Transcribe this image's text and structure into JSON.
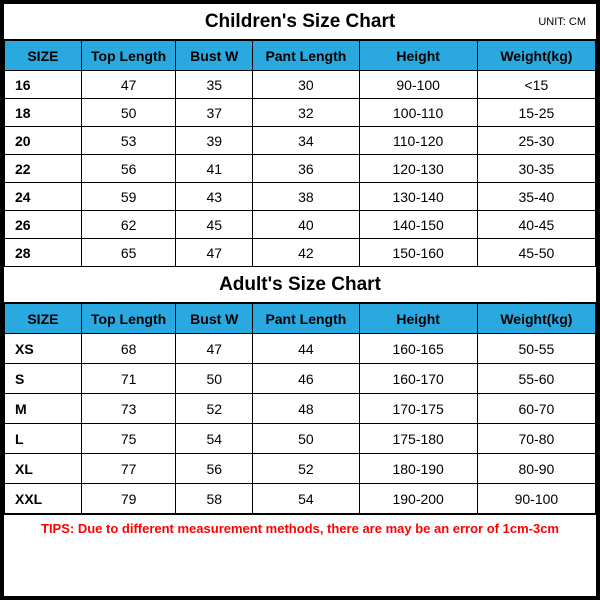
{
  "colors": {
    "header_bg": "#2aa9e0",
    "border": "#000000",
    "tips_color": "#ff0000",
    "body_bg": "#ffffff"
  },
  "layout": {
    "title_row_height": 36,
    "header_row_height": 30,
    "children_row_height": 28,
    "adult_row_height": 30
  },
  "unit_label": "UNIT: CM",
  "children": {
    "title": "Children's Size Chart",
    "columns": [
      "SIZE",
      "Top Length",
      "Bust W",
      "Pant Length",
      "Height",
      "Weight(kg)"
    ],
    "rows": [
      [
        "16",
        "47",
        "35",
        "30",
        "90-100",
        "<15"
      ],
      [
        "18",
        "50",
        "37",
        "32",
        "100-110",
        "15-25"
      ],
      [
        "20",
        "53",
        "39",
        "34",
        "110-120",
        "25-30"
      ],
      [
        "22",
        "56",
        "41",
        "36",
        "120-130",
        "30-35"
      ],
      [
        "24",
        "59",
        "43",
        "38",
        "130-140",
        "35-40"
      ],
      [
        "26",
        "62",
        "45",
        "40",
        "140-150",
        "40-45"
      ],
      [
        "28",
        "65",
        "47",
        "42",
        "150-160",
        "45-50"
      ]
    ]
  },
  "adult": {
    "title": "Adult's Size Chart",
    "columns": [
      "SIZE",
      "Top Length",
      "Bust W",
      "Pant Length",
      "Height",
      "Weight(kg)"
    ],
    "rows": [
      [
        "XS",
        "68",
        "47",
        "44",
        "160-165",
        "50-55"
      ],
      [
        "S",
        "71",
        "50",
        "46",
        "160-170",
        "55-60"
      ],
      [
        "M",
        "73",
        "52",
        "48",
        "170-175",
        "60-70"
      ],
      [
        "L",
        "75",
        "54",
        "50",
        "175-180",
        "70-80"
      ],
      [
        "XL",
        "77",
        "56",
        "52",
        "180-190",
        "80-90"
      ],
      [
        "XXL",
        "79",
        "58",
        "54",
        "190-200",
        "90-100"
      ]
    ]
  },
  "tips": "TIPS: Due to different measurement methods, there are may be an error of 1cm-3cm"
}
